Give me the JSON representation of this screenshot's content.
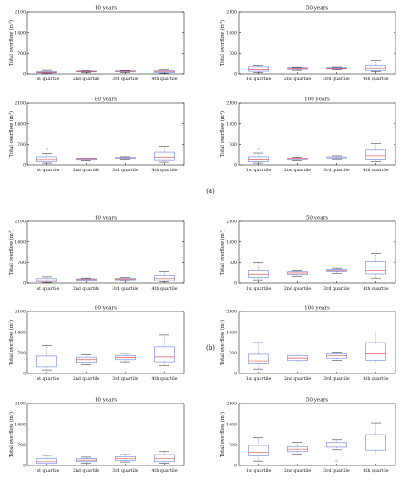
{
  "figure_labels": [
    "(a)",
    "(b)"
  ],
  "chart_data": [
    {
      "type": "box",
      "title": "10 years",
      "ylabel": "Total overflow (m3)",
      "ylim": [
        0,
        2100
      ],
      "yticks": [
        0,
        700,
        1400,
        2100
      ],
      "categories": [
        "1st quartile",
        "2nd quartile",
        "3rd quartile",
        "4th quartile"
      ],
      "boxes": [
        {
          "min": 20,
          "q1": 35,
          "median": 55,
          "q3": 80,
          "max": 120
        },
        {
          "min": 40,
          "q1": 70,
          "median": 85,
          "q3": 95,
          "max": 110
        },
        {
          "min": 45,
          "q1": 75,
          "median": 90,
          "q3": 100,
          "max": 115
        },
        {
          "min": 20,
          "q1": 45,
          "median": 75,
          "q3": 105,
          "max": 130
        }
      ]
    },
    {
      "type": "box",
      "title": "50 years",
      "ylabel": "Total overflow (m3)",
      "ylim": [
        0,
        2100
      ],
      "yticks": [
        0,
        700,
        1400,
        2100
      ],
      "categories": [
        "1st quartile",
        "2nd quartile",
        "3rd quartile",
        "4th quartile"
      ],
      "boxes": [
        {
          "min": 50,
          "q1": 90,
          "median": 140,
          "q3": 220,
          "max": 300
        },
        {
          "min": 120,
          "q1": 150,
          "median": 170,
          "q3": 190,
          "max": 210
        },
        {
          "min": 130,
          "q1": 160,
          "median": 175,
          "q3": 195,
          "max": 215
        },
        {
          "min": 70,
          "q1": 110,
          "median": 180,
          "q3": 300,
          "max": 450
        }
      ]
    },
    {
      "type": "box",
      "title": "80 years",
      "ylabel": "Total overflow (m3)",
      "ylim": [
        0,
        2100
      ],
      "yticks": [
        0,
        700,
        1400,
        2100
      ],
      "categories": [
        "1st quartile",
        "2nd quartile",
        "3rd quartile",
        "4th quartile"
      ],
      "boxes": [
        {
          "min": 60,
          "q1": 100,
          "median": 160,
          "q3": 280,
          "max": 380,
          "outliers": [
            530
          ]
        },
        {
          "min": 130,
          "q1": 160,
          "median": 190,
          "q3": 215,
          "max": 240
        },
        {
          "min": 170,
          "q1": 200,
          "median": 225,
          "q3": 255,
          "max": 280
        },
        {
          "min": 90,
          "q1": 150,
          "median": 270,
          "q3": 430,
          "max": 640
        }
      ]
    },
    {
      "type": "box",
      "title": "100 years",
      "ylabel": "Total overflow (m3)",
      "ylim": [
        0,
        2100
      ],
      "yticks": [
        0,
        700,
        1400,
        2100
      ],
      "categories": [
        "1st quartile",
        "2nd quartile",
        "3rd quartile",
        "4th quartile"
      ],
      "boxes": [
        {
          "min": 60,
          "q1": 110,
          "median": 170,
          "q3": 280,
          "max": 400,
          "outliers": [
            540
          ]
        },
        {
          "min": 140,
          "q1": 170,
          "median": 200,
          "q3": 230,
          "max": 270
        },
        {
          "min": 180,
          "q1": 210,
          "median": 240,
          "q3": 275,
          "max": 310
        },
        {
          "min": 100,
          "q1": 170,
          "median": 310,
          "q3": 500,
          "max": 720
        }
      ]
    },
    {
      "type": "box",
      "title": "10 years",
      "ylabel": "Total overflow (m3)",
      "ylim": [
        0,
        2100
      ],
      "yticks": [
        0,
        700,
        1400,
        2100
      ],
      "categories": [
        "1st quartile",
        "2nd quartile",
        "3rd quartile",
        "4th quartile"
      ],
      "boxes": [
        {
          "min": 20,
          "q1": 50,
          "median": 90,
          "q3": 160,
          "max": 220
        },
        {
          "min": 70,
          "q1": 100,
          "median": 130,
          "q3": 155,
          "max": 180
        },
        {
          "min": 90,
          "q1": 120,
          "median": 145,
          "q3": 175,
          "max": 200
        },
        {
          "min": 40,
          "q1": 90,
          "median": 160,
          "q3": 260,
          "max": 380
        }
      ]
    },
    {
      "type": "box",
      "title": "50 years",
      "ylabel": "Total overflow (m3)",
      "ylim": [
        0,
        2100
      ],
      "yticks": [
        0,
        700,
        1400,
        2100
      ],
      "categories": [
        "1st quartile",
        "2nd quartile",
        "3rd quartile",
        "4th quartile"
      ],
      "boxes": [
        {
          "min": 120,
          "q1": 200,
          "median": 300,
          "q3": 450,
          "max": 700
        },
        {
          "min": 240,
          "q1": 290,
          "median": 340,
          "q3": 380,
          "max": 450
        },
        {
          "min": 330,
          "q1": 390,
          "median": 440,
          "q3": 480,
          "max": 520
        },
        {
          "min": 180,
          "q1": 310,
          "median": 450,
          "q3": 720,
          "max": 1000
        }
      ]
    },
    {
      "type": "box",
      "title": "80 years",
      "ylabel": "Total overflow (m3)",
      "ylim": [
        0,
        2100
      ],
      "yticks": [
        0,
        700,
        1400,
        2100
      ],
      "categories": [
        "1st quartile",
        "2nd quartile",
        "3rd quartile",
        "4th quartile"
      ],
      "boxes": [
        {
          "min": 120,
          "q1": 220,
          "median": 360,
          "q3": 590,
          "max": 950
        },
        {
          "min": 300,
          "q1": 380,
          "median": 470,
          "q3": 550,
          "max": 640
        },
        {
          "min": 400,
          "q1": 470,
          "median": 540,
          "q3": 600,
          "max": 680
        },
        {
          "min": 270,
          "q1": 400,
          "median": 560,
          "q3": 900,
          "max": 1300
        }
      ]
    },
    {
      "type": "box",
      "title": "100 years",
      "ylabel": "Total overflow (m3)",
      "ylim": [
        0,
        2100
      ],
      "yticks": [
        0,
        700,
        1400,
        2100
      ],
      "categories": [
        "1st quartile",
        "2nd quartile",
        "3rd quartile",
        "4th quartile"
      ],
      "boxes": [
        {
          "min": 150,
          "q1": 320,
          "median": 430,
          "q3": 650,
          "max": 1050
        },
        {
          "min": 350,
          "q1": 440,
          "median": 520,
          "q3": 600,
          "max": 700
        },
        {
          "min": 450,
          "q1": 520,
          "median": 600,
          "q3": 660,
          "max": 730
        },
        {
          "min": 350,
          "q1": 450,
          "median": 660,
          "q3": 1050,
          "max": 1400
        }
      ]
    },
    {
      "type": "box",
      "title": "10 years",
      "ylabel": "Total overflow (m3)",
      "ylim": [
        0,
        2100
      ],
      "yticks": [
        0,
        700,
        1400,
        2100
      ],
      "categories": [
        "1st quartile",
        "2nd quartile",
        "3rd quartile",
        "4th quartile"
      ],
      "boxes": [
        {
          "min": 20,
          "q1": 70,
          "median": 130,
          "q3": 230,
          "max": 340
        },
        {
          "min": 80,
          "q1": 130,
          "median": 180,
          "q3": 230,
          "max": 280
        },
        {
          "min": 120,
          "q1": 170,
          "median": 230,
          "q3": 300,
          "max": 370
        },
        {
          "min": 70,
          "q1": 130,
          "median": 230,
          "q3": 370,
          "max": 470
        }
      ]
    },
    {
      "type": "box",
      "title": "50 years",
      "ylabel": "Total overflow (m3)",
      "ylim": [
        0,
        2100
      ],
      "yticks": [
        0,
        700,
        1400,
        2100
      ],
      "categories": [
        "1st quartile",
        "2nd quartile",
        "3rd quartile",
        "4th quartile"
      ],
      "boxes": [
        {
          "min": 150,
          "q1": 330,
          "median": 450,
          "q3": 680,
          "max": 950
        },
        {
          "min": 380,
          "q1": 470,
          "median": 550,
          "q3": 640,
          "max": 780
        },
        {
          "min": 530,
          "q1": 620,
          "median": 700,
          "q3": 780,
          "max": 870,
          "outliers": [
            150
          ]
        },
        {
          "min": 350,
          "q1": 520,
          "median": 700,
          "q3": 1050,
          "max": 1450
        }
      ]
    }
  ]
}
